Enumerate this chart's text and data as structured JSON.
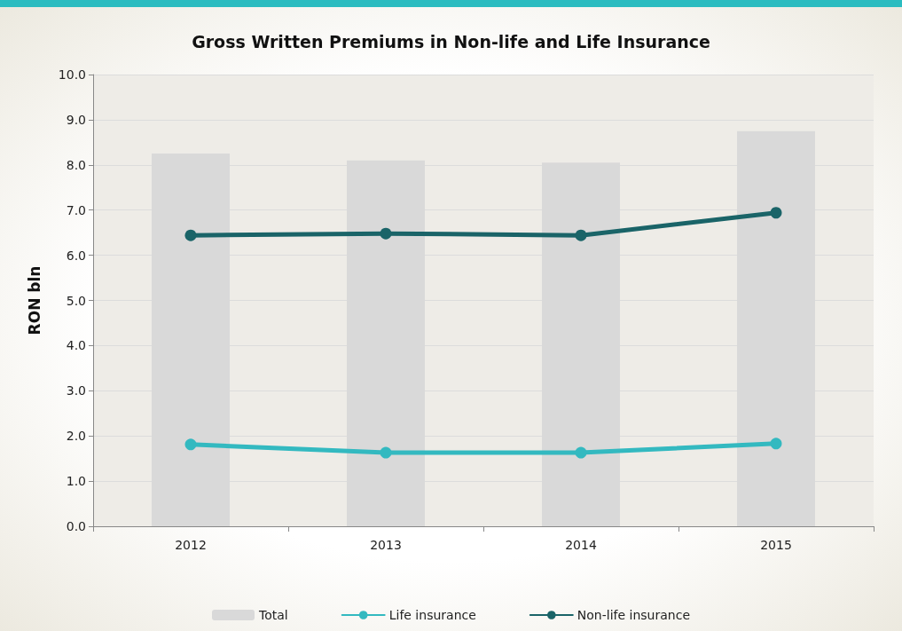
{
  "chart_data": {
    "type": "bar",
    "title": "Gross Written Premiums in Non-life and Life Insurance",
    "ylabel": "RON bln",
    "categories": [
      "2012",
      "2013",
      "2014",
      "2015"
    ],
    "series": [
      {
        "name": "Total",
        "color": "#d9d9d9",
        "values": [
          8.25,
          8.1,
          8.05,
          8.75
        ]
      },
      {
        "name": "Life insurance",
        "type": "line",
        "color": "#33b9c0",
        "values": [
          1.81,
          1.63,
          1.63,
          1.83
        ]
      },
      {
        "name": "Non-life insurance",
        "type": "line",
        "color": "#1a6468",
        "values": [
          6.44,
          6.48,
          6.44,
          6.94
        ]
      }
    ],
    "ylim": [
      0,
      10
    ],
    "yticks": [
      {
        "value": 0,
        "label": "0.0"
      },
      {
        "value": 1,
        "label": "1.0"
      },
      {
        "value": 2,
        "label": "2.0"
      },
      {
        "value": 3,
        "label": "3.0"
      },
      {
        "value": 4,
        "label": "4.0"
      },
      {
        "value": 5,
        "label": "5.0"
      },
      {
        "value": 6,
        "label": "6.0"
      },
      {
        "value": 7,
        "label": "7.0"
      },
      {
        "value": 8,
        "label": "8.0"
      },
      {
        "value": 9,
        "label": "9.0"
      },
      {
        "value": 10,
        "label": "10.0"
      }
    ],
    "grid": "y",
    "legend": "bottom",
    "marker": "circle",
    "line_style": "solid"
  }
}
